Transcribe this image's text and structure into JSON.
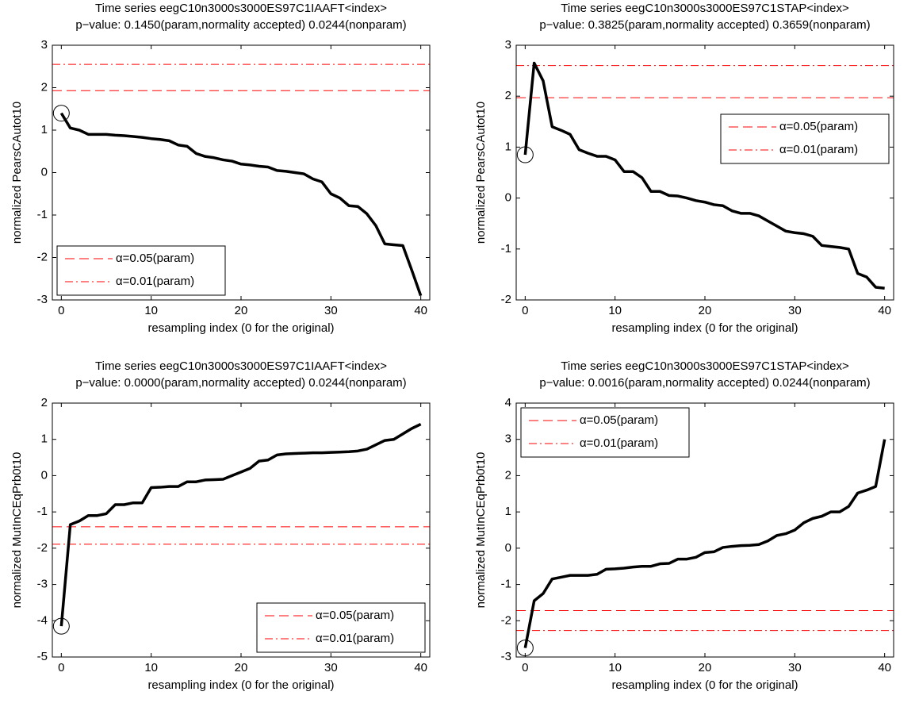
{
  "chart_data": [
    {
      "type": "line",
      "title": "Time series eegC10n3000s3000ES97C1IAAFT<index>",
      "subtitle": "p−value: 0.1450(param,normality accepted) 0.0244(nonparam)",
      "xlabel": "resampling index (0 for the original)",
      "ylabel": "normalized PearsCAutot10",
      "xlim": [
        -1,
        41
      ],
      "xticks": [
        0,
        10,
        20,
        30,
        40
      ],
      "ylim": [
        -3,
        3
      ],
      "yticks": [
        -3,
        -2,
        -1,
        0,
        1,
        2,
        3
      ],
      "legend": "lower left",
      "original_marker": "circle",
      "x": [
        0,
        1,
        2,
        3,
        4,
        5,
        6,
        7,
        8,
        9,
        10,
        11,
        12,
        13,
        14,
        15,
        16,
        17,
        18,
        19,
        20,
        21,
        22,
        23,
        24,
        25,
        26,
        27,
        28,
        29,
        30,
        31,
        32,
        33,
        34,
        35,
        36,
        37,
        38,
        39,
        40
      ],
      "series": [
        {
          "color": "#000000",
          "values": [
            1.4,
            1.05,
            1.0,
            0.9,
            0.9,
            0.9,
            0.88,
            0.87,
            0.85,
            0.83,
            0.8,
            0.78,
            0.75,
            0.65,
            0.62,
            0.45,
            0.38,
            0.35,
            0.3,
            0.27,
            0.2,
            0.18,
            0.15,
            0.13,
            0.05,
            0.03,
            0.0,
            -0.03,
            -0.15,
            -0.22,
            -0.5,
            -0.6,
            -0.78,
            -0.8,
            -0.97,
            -1.25,
            -1.68,
            -1.7,
            -1.72,
            -2.3,
            -2.9
          ]
        }
      ],
      "hlines": [
        {
          "name": "α=0.05(param)",
          "value": 1.93,
          "color": "#ff0000",
          "style": "dashed"
        },
        {
          "name": "α=0.01(param)",
          "value": 2.55,
          "color": "#ff0000",
          "style": "dashdot"
        }
      ]
    },
    {
      "type": "line",
      "title": "Time series eegC10n3000s3000ES97C1STAP<index>",
      "subtitle": "p−value: 0.3825(param,normality accepted) 0.3659(nonparam)",
      "xlabel": "resampling index (0 for the original)",
      "ylabel": "normalized PearsCAutot10",
      "xlim": [
        -1,
        41
      ],
      "xticks": [
        0,
        10,
        20,
        30,
        40
      ],
      "ylim": [
        -2,
        3
      ],
      "yticks": [
        -2,
        -1,
        0,
        1,
        2,
        3
      ],
      "legend": "upper right",
      "original_marker": "circle",
      "x": [
        0,
        1,
        2,
        3,
        4,
        5,
        6,
        7,
        8,
        9,
        10,
        11,
        12,
        13,
        14,
        15,
        16,
        17,
        18,
        19,
        20,
        21,
        22,
        23,
        24,
        25,
        26,
        27,
        28,
        29,
        30,
        31,
        32,
        33,
        34,
        35,
        36,
        37,
        38,
        39,
        40
      ],
      "series": [
        {
          "color": "#000000",
          "values": [
            0.85,
            2.65,
            2.3,
            1.4,
            1.33,
            1.25,
            0.95,
            0.88,
            0.82,
            0.82,
            0.75,
            0.52,
            0.52,
            0.4,
            0.13,
            0.13,
            0.05,
            0.04,
            0.0,
            -0.05,
            -0.08,
            -0.13,
            -0.15,
            -0.25,
            -0.3,
            -0.3,
            -0.35,
            -0.45,
            -0.55,
            -0.65,
            -0.68,
            -0.7,
            -0.75,
            -0.93,
            -0.95,
            -0.97,
            -1.0,
            -1.48,
            -1.55,
            -1.75,
            -1.77
          ]
        }
      ],
      "hlines": [
        {
          "name": "α=0.05(param)",
          "value": 1.97,
          "color": "#ff0000",
          "style": "dashed"
        },
        {
          "name": "α=0.01(param)",
          "value": 2.6,
          "color": "#ff0000",
          "style": "dashdot"
        }
      ]
    },
    {
      "type": "line",
      "title": "Time series eegC10n3000s3000ES97C1IAAFT<index>",
      "subtitle": "p−value: 0.0000(param,normality accepted) 0.0244(nonparam)",
      "xlabel": "resampling index (0 for the original)",
      "ylabel": "normalized MutInCEqPrb0t10",
      "xlim": [
        -1,
        41
      ],
      "xticks": [
        0,
        10,
        20,
        30,
        40
      ],
      "ylim": [
        -5,
        2
      ],
      "yticks": [
        -5,
        -4,
        -3,
        -2,
        -1,
        0,
        1,
        2
      ],
      "legend": "lower right",
      "original_marker": "circle",
      "x": [
        0,
        1,
        2,
        3,
        4,
        5,
        6,
        7,
        8,
        9,
        10,
        11,
        12,
        13,
        14,
        15,
        16,
        17,
        18,
        19,
        20,
        21,
        22,
        23,
        24,
        25,
        26,
        27,
        28,
        29,
        30,
        31,
        32,
        33,
        34,
        35,
        36,
        37,
        38,
        39,
        40
      ],
      "series": [
        {
          "color": "#000000",
          "values": [
            -4.15,
            -1.35,
            -1.25,
            -1.1,
            -1.1,
            -1.05,
            -0.8,
            -0.8,
            -0.75,
            -0.75,
            -0.33,
            -0.32,
            -0.3,
            -0.3,
            -0.17,
            -0.17,
            -0.12,
            -0.11,
            -0.1,
            0.0,
            0.1,
            0.2,
            0.4,
            0.43,
            0.57,
            0.6,
            0.61,
            0.62,
            0.63,
            0.63,
            0.64,
            0.65,
            0.66,
            0.68,
            0.73,
            0.85,
            0.97,
            1.0,
            1.15,
            1.3,
            1.42
          ]
        }
      ],
      "hlines": [
        {
          "name": "α=0.05(param)",
          "value": -1.41,
          "color": "#ff0000",
          "style": "dashed"
        },
        {
          "name": "α=0.01(param)",
          "value": -1.89,
          "color": "#ff0000",
          "style": "dashdot"
        }
      ]
    },
    {
      "type": "line",
      "title": "Time series eegC10n3000s3000ES97C1STAP<index>",
      "subtitle": "p−value: 0.0016(param,normality accepted) 0.0244(nonparam)",
      "xlabel": "resampling index (0 for the original)",
      "ylabel": "normalized MutInCEqPrb0t10",
      "xlim": [
        -1,
        41
      ],
      "xticks": [
        0,
        10,
        20,
        30,
        40
      ],
      "ylim": [
        -3,
        4
      ],
      "yticks": [
        -3,
        -2,
        -1,
        0,
        1,
        2,
        3,
        4
      ],
      "legend": "upper left",
      "original_marker": "circle",
      "x": [
        0,
        1,
        2,
        3,
        4,
        5,
        6,
        7,
        8,
        9,
        10,
        11,
        12,
        13,
        14,
        15,
        16,
        17,
        18,
        19,
        20,
        21,
        22,
        23,
        24,
        25,
        26,
        27,
        28,
        29,
        30,
        31,
        32,
        33,
        34,
        35,
        36,
        37,
        38,
        39,
        40
      ],
      "series": [
        {
          "color": "#000000",
          "values": [
            -2.75,
            -1.45,
            -1.25,
            -0.85,
            -0.8,
            -0.75,
            -0.75,
            -0.75,
            -0.72,
            -0.58,
            -0.57,
            -0.55,
            -0.52,
            -0.5,
            -0.5,
            -0.43,
            -0.42,
            -0.3,
            -0.3,
            -0.25,
            -0.12,
            -0.1,
            0.02,
            0.05,
            0.07,
            0.08,
            0.1,
            0.2,
            0.35,
            0.4,
            0.5,
            0.7,
            0.82,
            0.88,
            1.0,
            1.0,
            1.15,
            1.52,
            1.6,
            1.7,
            3.0
          ]
        }
      ],
      "hlines": [
        {
          "name": "α=0.05(param)",
          "value": -1.72,
          "color": "#ff0000",
          "style": "dashed"
        },
        {
          "name": "α=0.01(param)",
          "value": -2.27,
          "color": "#ff0000",
          "style": "dashdot"
        }
      ]
    }
  ]
}
